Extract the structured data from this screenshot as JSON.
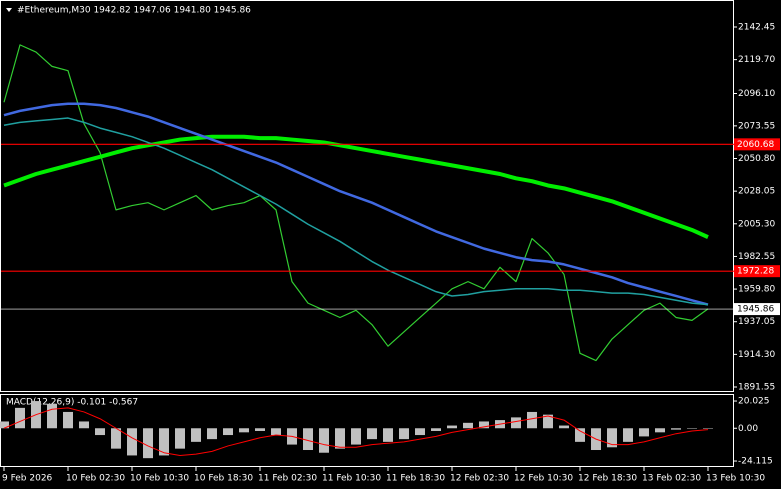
{
  "chart_data": [
    {
      "type": "price",
      "header": "#Ethereum,M30  1942.82 1947.06 1941.80 1945.86",
      "categories": [
        "9 Feb 2026",
        null,
        null,
        null,
        "10 Feb 02:30",
        null,
        null,
        null,
        "10 Feb 10:30",
        null,
        null,
        null,
        "10 Feb 18:30",
        null,
        null,
        null,
        "11 Feb 02:30",
        null,
        null,
        null,
        "11 Feb 10:30",
        null,
        null,
        null,
        "11 Feb 18:30",
        null,
        null,
        null,
        "12 Feb 02:30",
        null,
        null,
        null,
        "12 Feb 10:30",
        null,
        null,
        null,
        "12 Feb 18:30",
        null,
        null,
        null,
        "13 Feb 02:30",
        null,
        null,
        null,
        "13 Feb 10:30"
      ],
      "series": [
        {
          "color": "#32cd32",
          "values": [
            2090,
            2130,
            2125,
            2115,
            2112,
            2075,
            2055,
            2015,
            2018,
            2020,
            2015,
            2020,
            2025,
            2015,
            2018,
            2020,
            2025,
            2015,
            1965,
            1950,
            1945,
            1940,
            1945,
            1935,
            1920,
            1930,
            1940,
            1950,
            1960,
            1965,
            1960,
            1975,
            1965,
            1995,
            1985,
            1970,
            1915,
            1910,
            1925,
            1935,
            1945,
            1950,
            1940,
            1938,
            1946
          ]
        },
        {
          "color": "#00ee00",
          "values": [
            2032,
            2036,
            2040,
            2043,
            2046,
            2049,
            2052,
            2055,
            2058,
            2060,
            2062,
            2064,
            2065,
            2066,
            2066,
            2066,
            2065,
            2065,
            2064,
            2063,
            2062,
            2060,
            2058,
            2056,
            2054,
            2052,
            2050,
            2048,
            2046,
            2044,
            2042,
            2040,
            2037,
            2035,
            2032,
            2030,
            2027,
            2024,
            2021,
            2017,
            2013,
            2009,
            2005,
            2001,
            1996
          ]
        },
        {
          "color": "#4169e1",
          "values": [
            2081,
            2084,
            2086,
            2088,
            2089,
            2089,
            2088,
            2086,
            2083,
            2080,
            2076,
            2072,
            2068,
            2064,
            2060,
            2056,
            2052,
            2048,
            2043,
            2038,
            2033,
            2028,
            2024,
            2020,
            2015,
            2010,
            2005,
            2000,
            1996,
            1992,
            1988,
            1985,
            1982,
            1980,
            1979,
            1977,
            1974,
            1971,
            1968,
            1964,
            1961,
            1958,
            1955,
            1952,
            1949
          ]
        },
        {
          "color": "#20a0a0",
          "values": [
            2074,
            2076,
            2077,
            2078,
            2079,
            2076,
            2072,
            2069,
            2066,
            2062,
            2058,
            2053,
            2048,
            2043,
            2037,
            2031,
            2025,
            2019,
            2012,
            2005,
            1999,
            1993,
            1986,
            1979,
            1973,
            1968,
            1963,
            1958,
            1955,
            1956,
            1958,
            1959,
            1960,
            1960,
            1960,
            1959,
            1959,
            1958,
            1957,
            1957,
            1956,
            1954,
            1952,
            1950,
            1949
          ]
        }
      ],
      "hlines": [
        {
          "value": 2060.68,
          "color": "#ff0000"
        },
        {
          "value": 1972.28,
          "color": "#ff0000"
        },
        {
          "value": 1945.86,
          "color": "#ffffff"
        }
      ],
      "ylim": [
        1888.07,
        2161.27
      ],
      "yticks": [
        2142.45,
        {
          "value": 2119.7,
          "label": "2119.70"
        },
        {
          "value": 2096.1,
          "label": "2096.10"
        },
        2073.55,
        {
          "value": 2050.8,
          "label": "2050.80"
        },
        2028.05,
        {
          "value": 2005.3,
          "label": "2005.30"
        },
        1982.55,
        {
          "value": 1959.8,
          "label": "1959.80"
        },
        1937.05,
        {
          "value": 1914.3,
          "label": "1914.30"
        },
        1891.55
      ]
    },
    {
      "type": "macd",
      "label": "MACD(12,26,9) -0.101 -0.567",
      "histogram": {
        "color": "#c0c0c0",
        "values": [
          5,
          15,
          20,
          18,
          12,
          5,
          -5,
          -15,
          -20,
          -22,
          -20,
          -15,
          -10,
          -8,
          -5,
          -3,
          -2,
          -5,
          -12,
          -16,
          -18,
          -15,
          -12,
          -8,
          -10,
          -8,
          -5,
          -2,
          2,
          4,
          5,
          6,
          8,
          12,
          10,
          2,
          -10,
          -16,
          -14,
          -10,
          -6,
          -3,
          -1,
          0,
          0
        ]
      },
      "signal": {
        "color": "#ff0000",
        "values": [
          0,
          5,
          10,
          14,
          15,
          12,
          7,
          0,
          -7,
          -13,
          -18,
          -20,
          -19,
          -17,
          -13,
          -10,
          -7,
          -5,
          -6,
          -9,
          -12,
          -14,
          -14,
          -12,
          -11,
          -10,
          -8,
          -6,
          -3,
          -1,
          1,
          3,
          5,
          7,
          9,
          6,
          -2,
          -8,
          -12,
          -12,
          -10,
          -7,
          -4,
          -2,
          -1
        ]
      },
      "ylim": [
        -28.5,
        25.2
      ],
      "yticks": [
        20.025,
        {
          "value": 0,
          "label": "0.00"
        },
        -24.115
      ]
    }
  ]
}
